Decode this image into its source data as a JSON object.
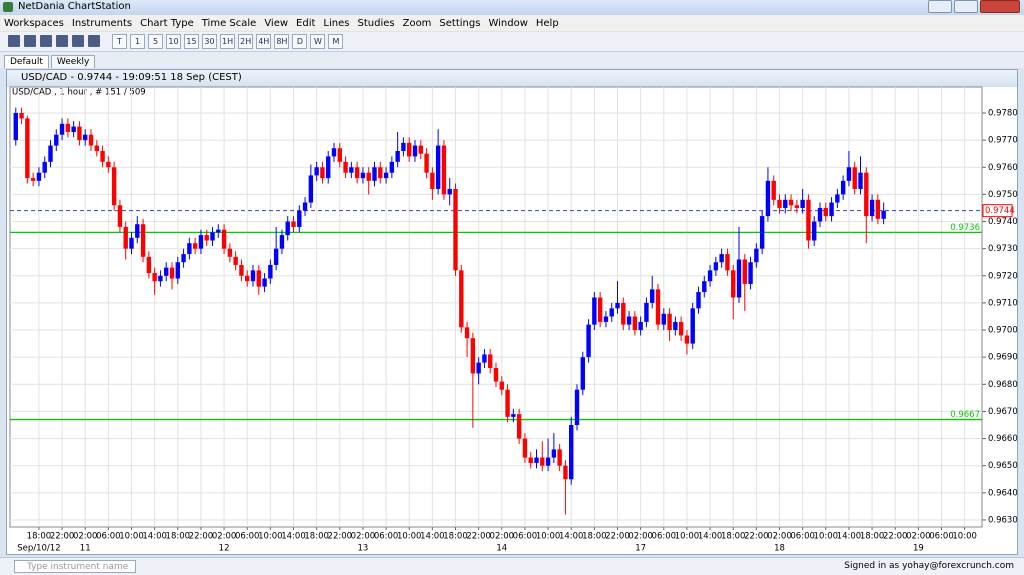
{
  "window_title": "NetDania ChartStation",
  "menu": [
    "Workspaces",
    "Instruments",
    "Chart Type",
    "Time Scale",
    "View",
    "Edit",
    "Lines",
    "Studies",
    "Zoom",
    "Settings",
    "Window",
    "Help"
  ],
  "toolbar": [
    "T",
    "1",
    "5",
    "10",
    "15",
    "30",
    "1H",
    "2H",
    "4H",
    "8H",
    "D",
    "W",
    "M"
  ],
  "tabs": [
    "Default",
    "Weekly"
  ],
  "chart_window_title": "USD/CAD - 0.9744 - 19:09:51  18 Sep (CEST)",
  "status": {
    "instrument_placeholder": "Type instrument name",
    "signed_in": "Signed in as yohay@forexcrunch.com"
  },
  "chart_data": {
    "type": "candlestick",
    "subtitle": "USD/CAD , 1 hour , # 151 / 509",
    "up_color": "#0000ff",
    "down_color": "#ff0000",
    "grid": true,
    "xlim": [
      -1,
      167
    ],
    "ylim": [
      0.96274,
      0.97859
    ],
    "yticks": [
      {
        "value": 0.963,
        "label": "0.9630"
      },
      {
        "value": 0.964,
        "label": "0.9640"
      },
      {
        "value": 0.965,
        "label": "0.9650"
      },
      {
        "value": 0.966,
        "label": "0.9660"
      },
      {
        "value": 0.967,
        "label": "0.9670"
      },
      {
        "value": 0.968,
        "label": "0.9680"
      },
      {
        "value": 0.969,
        "label": "0.9690"
      },
      {
        "value": 0.97,
        "label": "0.9700"
      },
      {
        "value": 0.971,
        "label": "0.9710"
      },
      {
        "value": 0.972,
        "label": "0.9720"
      },
      {
        "value": 0.973,
        "label": "0.9730"
      },
      {
        "value": 0.974,
        "label": "0.9740"
      },
      {
        "value": 0.975,
        "label": "0.9750"
      },
      {
        "value": 0.976,
        "label": "0.9760"
      },
      {
        "value": 0.977,
        "label": "0.9770"
      },
      {
        "value": 0.978,
        "label": "0.9780"
      }
    ],
    "xticks": [
      {
        "value": 4,
        "label": "18:00"
      },
      {
        "value": 8,
        "label": "22:00"
      },
      {
        "value": 12,
        "label": "02:00"
      },
      {
        "value": 16,
        "label": "06:00"
      },
      {
        "value": 20,
        "label": "10:00"
      },
      {
        "value": 24,
        "label": "14:00"
      },
      {
        "value": 28,
        "label": "18:00"
      },
      {
        "value": 32,
        "label": "22:00"
      },
      {
        "value": 36,
        "label": "02:00"
      },
      {
        "value": 40,
        "label": "06:00"
      },
      {
        "value": 44,
        "label": "10:00"
      },
      {
        "value": 48,
        "label": "14:00"
      },
      {
        "value": 52,
        "label": "18:00"
      },
      {
        "value": 56,
        "label": "22:00"
      },
      {
        "value": 60,
        "label": "02:00"
      },
      {
        "value": 64,
        "label": "06:00"
      },
      {
        "value": 68,
        "label": "10:00"
      },
      {
        "value": 72,
        "label": "14:00"
      },
      {
        "value": 76,
        "label": "18:00"
      },
      {
        "value": 80,
        "label": "22:00"
      },
      {
        "value": 84,
        "label": "02:00"
      },
      {
        "value": 88,
        "label": "06:00"
      },
      {
        "value": 92,
        "label": "10:00"
      },
      {
        "value": 96,
        "label": "14:00"
      },
      {
        "value": 100,
        "label": "18:00"
      },
      {
        "value": 104,
        "label": "22:00"
      },
      {
        "value": 108,
        "label": "02:00"
      },
      {
        "value": 112,
        "label": "06:00"
      },
      {
        "value": 116,
        "label": "10:00"
      },
      {
        "value": 120,
        "label": "14:00"
      },
      {
        "value": 124,
        "label": "18:00"
      },
      {
        "value": 128,
        "label": "22:00"
      },
      {
        "value": 132,
        "label": "02:00"
      },
      {
        "value": 136,
        "label": "06:00"
      },
      {
        "value": 140,
        "label": "10:00"
      },
      {
        "value": 144,
        "label": "14:00"
      },
      {
        "value": 148,
        "label": "18:00"
      },
      {
        "value": 152,
        "label": "22:00"
      },
      {
        "value": 156,
        "label": "02:00"
      },
      {
        "value": 160,
        "label": "06:00"
      },
      {
        "value": 164,
        "label": "10:00"
      }
    ],
    "day_ticks": [
      {
        "value": 4,
        "label": "Sep/10/12"
      },
      {
        "value": 12,
        "label": "11"
      },
      {
        "value": 36,
        "label": "12"
      },
      {
        "value": 60,
        "label": "13"
      },
      {
        "value": 84,
        "label": "14"
      },
      {
        "value": 108,
        "label": "17"
      },
      {
        "value": 132,
        "label": "18"
      },
      {
        "value": 156,
        "label": "19"
      }
    ],
    "hlines": [
      {
        "value": 0.9736,
        "label": "0.9736",
        "color": "#00cc00"
      },
      {
        "value": 0.9667,
        "label": "0.9667",
        "color": "#00cc00"
      }
    ],
    "current_price": {
      "value": 0.9744,
      "label": "0.9744",
      "color": "#3344cc"
    },
    "ohlc": [
      [
        0.977,
        0.9782,
        0.9768,
        0.978
      ],
      [
        0.978,
        0.9782,
        0.9776,
        0.9778
      ],
      [
        0.9778,
        0.9779,
        0.9754,
        0.9756
      ],
      [
        0.9756,
        0.9758,
        0.9753,
        0.9755
      ],
      [
        0.9755,
        0.976,
        0.9753,
        0.9758
      ],
      [
        0.9758,
        0.9764,
        0.9756,
        0.9762
      ],
      [
        0.9762,
        0.977,
        0.976,
        0.9768
      ],
      [
        0.9768,
        0.9774,
        0.9766,
        0.9772
      ],
      [
        0.9772,
        0.9778,
        0.977,
        0.9776
      ],
      [
        0.9776,
        0.9778,
        0.9771,
        0.9773
      ],
      [
        0.9773,
        0.9777,
        0.9771,
        0.9775
      ],
      [
        0.9775,
        0.9777,
        0.9768,
        0.977
      ],
      [
        0.977,
        0.9774,
        0.9768,
        0.9772
      ],
      [
        0.9772,
        0.9774,
        0.9766,
        0.9768
      ],
      [
        0.9768,
        0.977,
        0.9764,
        0.9766
      ],
      [
        0.9766,
        0.9768,
        0.976,
        0.9762
      ],
      [
        0.9762,
        0.9764,
        0.9758,
        0.976
      ],
      [
        0.976,
        0.9762,
        0.9744,
        0.9746
      ],
      [
        0.9746,
        0.9748,
        0.9736,
        0.9738
      ],
      [
        0.9738,
        0.974,
        0.9726,
        0.973
      ],
      [
        0.973,
        0.9736,
        0.9728,
        0.9734
      ],
      [
        0.9734,
        0.9742,
        0.9732,
        0.9739
      ],
      [
        0.9739,
        0.9741,
        0.9725,
        0.9727
      ],
      [
        0.9727,
        0.9729,
        0.9719,
        0.9721
      ],
      [
        0.9721,
        0.9723,
        0.9713,
        0.9718
      ],
      [
        0.9718,
        0.9722,
        0.9716,
        0.972
      ],
      [
        0.972,
        0.9725,
        0.9718,
        0.9723
      ],
      [
        0.9723,
        0.9725,
        0.9715,
        0.9719
      ],
      [
        0.9719,
        0.9727,
        0.9717,
        0.9725
      ],
      [
        0.9725,
        0.973,
        0.9723,
        0.9728
      ],
      [
        0.9728,
        0.9734,
        0.9726,
        0.9732
      ],
      [
        0.9732,
        0.9734,
        0.9728,
        0.973
      ],
      [
        0.973,
        0.9737,
        0.9728,
        0.9735
      ],
      [
        0.9735,
        0.9737,
        0.9731,
        0.9733
      ],
      [
        0.9733,
        0.9738,
        0.9731,
        0.9736
      ],
      [
        0.9736,
        0.9739,
        0.9734,
        0.9737
      ],
      [
        0.9737,
        0.9739,
        0.9728,
        0.973
      ],
      [
        0.973,
        0.9732,
        0.9725,
        0.9727
      ],
      [
        0.9727,
        0.9729,
        0.9722,
        0.9724
      ],
      [
        0.9724,
        0.9726,
        0.9718,
        0.972
      ],
      [
        0.972,
        0.9722,
        0.9716,
        0.9718
      ],
      [
        0.9718,
        0.9724,
        0.9716,
        0.9722
      ],
      [
        0.9722,
        0.9724,
        0.9713,
        0.9716
      ],
      [
        0.9716,
        0.9721,
        0.9714,
        0.9719
      ],
      [
        0.9719,
        0.9726,
        0.9717,
        0.9724
      ],
      [
        0.9724,
        0.9738,
        0.9722,
        0.973
      ],
      [
        0.973,
        0.9737,
        0.9728,
        0.9735
      ],
      [
        0.9735,
        0.9742,
        0.9733,
        0.974
      ],
      [
        0.974,
        0.9742,
        0.9736,
        0.9738
      ],
      [
        0.9738,
        0.9746,
        0.9736,
        0.9744
      ],
      [
        0.9744,
        0.9749,
        0.9742,
        0.9747
      ],
      [
        0.9747,
        0.9761,
        0.9745,
        0.9757
      ],
      [
        0.9757,
        0.9762,
        0.9755,
        0.976
      ],
      [
        0.976,
        0.9762,
        0.9754,
        0.9756
      ],
      [
        0.9756,
        0.9766,
        0.9754,
        0.9764
      ],
      [
        0.9764,
        0.9769,
        0.9762,
        0.9767
      ],
      [
        0.9767,
        0.9769,
        0.976,
        0.9762
      ],
      [
        0.9762,
        0.9764,
        0.9756,
        0.9758
      ],
      [
        0.9758,
        0.9762,
        0.9756,
        0.976
      ],
      [
        0.976,
        0.9762,
        0.9754,
        0.9756
      ],
      [
        0.9756,
        0.976,
        0.9754,
        0.9758
      ],
      [
        0.9758,
        0.976,
        0.975,
        0.9755
      ],
      [
        0.9755,
        0.9762,
        0.9753,
        0.976
      ],
      [
        0.976,
        0.9762,
        0.9754,
        0.9756
      ],
      [
        0.9756,
        0.976,
        0.9754,
        0.9758
      ],
      [
        0.9758,
        0.9764,
        0.9756,
        0.9762
      ],
      [
        0.9762,
        0.9773,
        0.976,
        0.9766
      ],
      [
        0.9766,
        0.9771,
        0.9764,
        0.9769
      ],
      [
        0.9769,
        0.9771,
        0.9762,
        0.9764
      ],
      [
        0.9764,
        0.977,
        0.9762,
        0.9768
      ],
      [
        0.9768,
        0.977,
        0.9763,
        0.9765
      ],
      [
        0.9765,
        0.9767,
        0.9756,
        0.9758
      ],
      [
        0.9758,
        0.976,
        0.9748,
        0.9752
      ],
      [
        0.9752,
        0.9774,
        0.975,
        0.9768
      ],
      [
        0.9768,
        0.977,
        0.9748,
        0.975
      ],
      [
        0.975,
        0.9756,
        0.9746,
        0.9752
      ],
      [
        0.9752,
        0.9754,
        0.972,
        0.9722
      ],
      [
        0.9722,
        0.9724,
        0.9699,
        0.9701
      ],
      [
        0.9701,
        0.9703,
        0.969,
        0.9697
      ],
      [
        0.9697,
        0.9699,
        0.9664,
        0.9684
      ],
      [
        0.9684,
        0.969,
        0.968,
        0.9688
      ],
      [
        0.9688,
        0.9693,
        0.9686,
        0.9691
      ],
      [
        0.9691,
        0.9693,
        0.9684,
        0.9686
      ],
      [
        0.9686,
        0.9688,
        0.9679,
        0.9681
      ],
      [
        0.9681,
        0.9683,
        0.9676,
        0.9678
      ],
      [
        0.9678,
        0.968,
        0.9666,
        0.9668
      ],
      [
        0.9668,
        0.9671,
        0.9666,
        0.9669
      ],
      [
        0.9669,
        0.9671,
        0.9658,
        0.966
      ],
      [
        0.966,
        0.9662,
        0.9651,
        0.9653
      ],
      [
        0.9653,
        0.9655,
        0.9649,
        0.9651
      ],
      [
        0.9651,
        0.9656,
        0.9649,
        0.9653
      ],
      [
        0.9653,
        0.9659,
        0.9648,
        0.965
      ],
      [
        0.965,
        0.966,
        0.9648,
        0.9653
      ],
      [
        0.9653,
        0.9662,
        0.9651,
        0.9656
      ],
      [
        0.9656,
        0.9658,
        0.9648,
        0.965
      ],
      [
        0.965,
        0.9652,
        0.9632,
        0.9645
      ],
      [
        0.9645,
        0.9668,
        0.9643,
        0.9665
      ],
      [
        0.9665,
        0.968,
        0.9663,
        0.9678
      ],
      [
        0.9678,
        0.9692,
        0.9676,
        0.969
      ],
      [
        0.969,
        0.9704,
        0.9688,
        0.9702
      ],
      [
        0.9702,
        0.9714,
        0.97,
        0.9712
      ],
      [
        0.9712,
        0.9714,
        0.9701,
        0.9703
      ],
      [
        0.9703,
        0.9707,
        0.9701,
        0.9705
      ],
      [
        0.9705,
        0.971,
        0.9703,
        0.9708
      ],
      [
        0.9708,
        0.9718,
        0.9706,
        0.971
      ],
      [
        0.971,
        0.9712,
        0.97,
        0.9702
      ],
      [
        0.9702,
        0.9707,
        0.97,
        0.9705
      ],
      [
        0.9705,
        0.9707,
        0.9698,
        0.97
      ],
      [
        0.97,
        0.9705,
        0.9698,
        0.9703
      ],
      [
        0.9703,
        0.9712,
        0.9701,
        0.971
      ],
      [
        0.971,
        0.972,
        0.9708,
        0.9715
      ],
      [
        0.9715,
        0.9717,
        0.97,
        0.9702
      ],
      [
        0.9702,
        0.9708,
        0.97,
        0.9706
      ],
      [
        0.9706,
        0.9708,
        0.9696,
        0.97
      ],
      [
        0.97,
        0.9705,
        0.9698,
        0.9703
      ],
      [
        0.9703,
        0.9705,
        0.9696,
        0.9698
      ],
      [
        0.9698,
        0.97,
        0.9691,
        0.9695
      ],
      [
        0.9695,
        0.971,
        0.9693,
        0.9708
      ],
      [
        0.9708,
        0.9716,
        0.9706,
        0.9714
      ],
      [
        0.9714,
        0.972,
        0.9712,
        0.9718
      ],
      [
        0.9718,
        0.9724,
        0.9716,
        0.9722
      ],
      [
        0.9722,
        0.9727,
        0.972,
        0.9725
      ],
      [
        0.9725,
        0.973,
        0.9723,
        0.9728
      ],
      [
        0.9728,
        0.973,
        0.972,
        0.9722
      ],
      [
        0.9722,
        0.9724,
        0.9704,
        0.9712
      ],
      [
        0.9712,
        0.9738,
        0.971,
        0.9726
      ],
      [
        0.9726,
        0.9728,
        0.9707,
        0.9717
      ],
      [
        0.9717,
        0.9727,
        0.9715,
        0.9725
      ],
      [
        0.9725,
        0.9732,
        0.9723,
        0.973
      ],
      [
        0.973,
        0.9744,
        0.9728,
        0.9742
      ],
      [
        0.9742,
        0.976,
        0.974,
        0.9755
      ],
      [
        0.9755,
        0.9757,
        0.9746,
        0.9748
      ],
      [
        0.9748,
        0.975,
        0.9743,
        0.9745
      ],
      [
        0.9745,
        0.975,
        0.9743,
        0.9748
      ],
      [
        0.9748,
        0.975,
        0.9744,
        0.9746
      ],
      [
        0.9746,
        0.9748,
        0.9743,
        0.9745
      ],
      [
        0.9745,
        0.9752,
        0.9743,
        0.9748
      ],
      [
        0.9748,
        0.975,
        0.973,
        0.9733
      ],
      [
        0.9733,
        0.9742,
        0.9731,
        0.974
      ],
      [
        0.974,
        0.9747,
        0.9738,
        0.9745
      ],
      [
        0.9745,
        0.9747,
        0.974,
        0.9742
      ],
      [
        0.9742,
        0.9749,
        0.974,
        0.9747
      ],
      [
        0.9747,
        0.9752,
        0.9745,
        0.975
      ],
      [
        0.975,
        0.9757,
        0.9748,
        0.9755
      ],
      [
        0.9755,
        0.9766,
        0.9753,
        0.976
      ],
      [
        0.976,
        0.9762,
        0.975,
        0.9752
      ],
      [
        0.9752,
        0.9764,
        0.975,
        0.9758
      ],
      [
        0.9758,
        0.976,
        0.9732,
        0.9742
      ],
      [
        0.9742,
        0.975,
        0.974,
        0.9748
      ],
      [
        0.9748,
        0.975,
        0.9739,
        0.9741
      ],
      [
        0.9741,
        0.9747,
        0.9739,
        0.9744
      ]
    ]
  }
}
